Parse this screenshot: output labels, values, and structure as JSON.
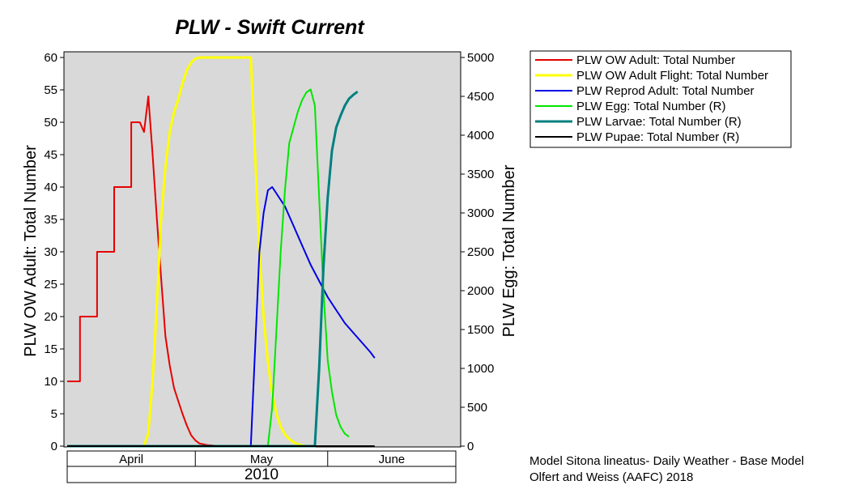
{
  "chart_data": {
    "type": "line",
    "title": "PLW - Swift Current",
    "ylabel_left": "PLW OW Adult: Total Number",
    "ylabel_right": "PLW Egg: Total Number",
    "ylim_left": [
      0,
      60
    ],
    "ylim_right": [
      0,
      5000
    ],
    "left_ticks": [
      "0",
      "5",
      "10",
      "15",
      "20",
      "25",
      "30",
      "35",
      "40",
      "45",
      "50",
      "55",
      "60"
    ],
    "right_ticks": [
      "0",
      "500",
      "1000",
      "1500",
      "2000",
      "2500",
      "3000",
      "3500",
      "4000",
      "4500",
      "5000"
    ],
    "x_axis": {
      "unit": "day of year",
      "range": [
        90,
        181
      ],
      "months": [
        {
          "label": "April",
          "start": 90,
          "end": 120
        },
        {
          "label": "May",
          "start": 120,
          "end": 151
        },
        {
          "label": "June",
          "start": 151,
          "end": 181
        }
      ],
      "year": "2010"
    },
    "grid": false,
    "background": "#d9d9d9",
    "legend_position": "right",
    "series": [
      {
        "name": "PLW OW Adult: Total Number",
        "axis": "left",
        "color": "#e60000",
        "width": 2,
        "points": [
          [
            90,
            10
          ],
          [
            93,
            10
          ],
          [
            93,
            20
          ],
          [
            97,
            20
          ],
          [
            97,
            30
          ],
          [
            101,
            30
          ],
          [
            101,
            40
          ],
          [
            105,
            40
          ],
          [
            105,
            50
          ],
          [
            107,
            50
          ],
          [
            108,
            48.5
          ],
          [
            109,
            54
          ],
          [
            110,
            45
          ],
          [
            111,
            35
          ],
          [
            112,
            26
          ],
          [
            113,
            17
          ],
          [
            114,
            12.5
          ],
          [
            115,
            9
          ],
          [
            116,
            7
          ],
          [
            117,
            5
          ],
          [
            118,
            3.2
          ],
          [
            119,
            1.7
          ],
          [
            120,
            0.9
          ],
          [
            121,
            0.4
          ],
          [
            123,
            0.15
          ],
          [
            125,
            0.05
          ]
        ]
      },
      {
        "name": "PLW OW Adult Flight: Total Number",
        "axis": "left",
        "color": "#ffff00",
        "width": 3,
        "points": [
          [
            90,
            0
          ],
          [
            108,
            0
          ],
          [
            109,
            2
          ],
          [
            110,
            10
          ],
          [
            111,
            22
          ],
          [
            112,
            35
          ],
          [
            113,
            43
          ],
          [
            114,
            48.5
          ],
          [
            115,
            51.5
          ],
          [
            116,
            53.5
          ],
          [
            117,
            56
          ],
          [
            118,
            58
          ],
          [
            119,
            59.2
          ],
          [
            120,
            59.8
          ],
          [
            121,
            60
          ],
          [
            133,
            60
          ],
          [
            134,
            45
          ],
          [
            135,
            30
          ],
          [
            136,
            20
          ],
          [
            137,
            13
          ],
          [
            138,
            8
          ],
          [
            139,
            5
          ],
          [
            140,
            3
          ],
          [
            141,
            1.8
          ],
          [
            142,
            1.1
          ],
          [
            143,
            0.6
          ],
          [
            144,
            0.3
          ],
          [
            145,
            0.1
          ],
          [
            146,
            0
          ]
        ]
      },
      {
        "name": "PLW Reprod Adult: Total Number",
        "axis": "left",
        "color": "#0000e6",
        "width": 2,
        "points": [
          [
            90,
            0
          ],
          [
            133,
            0
          ],
          [
            134,
            15
          ],
          [
            135,
            30
          ],
          [
            136,
            36
          ],
          [
            137,
            39.5
          ],
          [
            138,
            40
          ],
          [
            139,
            39
          ],
          [
            141,
            37
          ],
          [
            143,
            34
          ],
          [
            145,
            31
          ],
          [
            147,
            28
          ],
          [
            149,
            25.5
          ],
          [
            151,
            23
          ],
          [
            153,
            21
          ],
          [
            155,
            19
          ],
          [
            157,
            17.5
          ],
          [
            159,
            16
          ],
          [
            161,
            14.5
          ],
          [
            162,
            13.6
          ]
        ]
      },
      {
        "name": "PLW Egg: Total Number (R)",
        "axis": "right",
        "color": "#00e600",
        "width": 2,
        "points": [
          [
            90,
            0
          ],
          [
            137,
            0
          ],
          [
            138,
            500
          ],
          [
            139,
            1500
          ],
          [
            140,
            2500
          ],
          [
            141,
            3300
          ],
          [
            142,
            3900
          ],
          [
            143,
            4100
          ],
          [
            144,
            4300
          ],
          [
            145,
            4450
          ],
          [
            146,
            4550
          ],
          [
            147,
            4590
          ],
          [
            148,
            4380
          ],
          [
            149,
            3200
          ],
          [
            150,
            2000
          ],
          [
            151,
            1100
          ],
          [
            152,
            700
          ],
          [
            153,
            400
          ],
          [
            154,
            250
          ],
          [
            155,
            160
          ],
          [
            156,
            120
          ]
        ]
      },
      {
        "name": "PLW Larvae: Total Number (R)",
        "axis": "right",
        "color": "#008080",
        "width": 3,
        "points": [
          [
            90,
            0
          ],
          [
            148,
            0
          ],
          [
            149,
            1000
          ],
          [
            150,
            2300
          ],
          [
            151,
            3200
          ],
          [
            152,
            3800
          ],
          [
            153,
            4100
          ],
          [
            154,
            4250
          ],
          [
            155,
            4380
          ],
          [
            156,
            4470
          ],
          [
            157,
            4520
          ],
          [
            158,
            4560
          ]
        ]
      },
      {
        "name": "PLW Pupae: Total Number (R)",
        "axis": "right",
        "color": "#000000",
        "width": 2,
        "points": [
          [
            90,
            0
          ],
          [
            162,
            0
          ]
        ]
      }
    ]
  },
  "credits": {
    "line1": "Model Sitona lineatus- Daily Weather - Base Model",
    "line2": "Olfert and Weiss (AAFC) 2018"
  }
}
